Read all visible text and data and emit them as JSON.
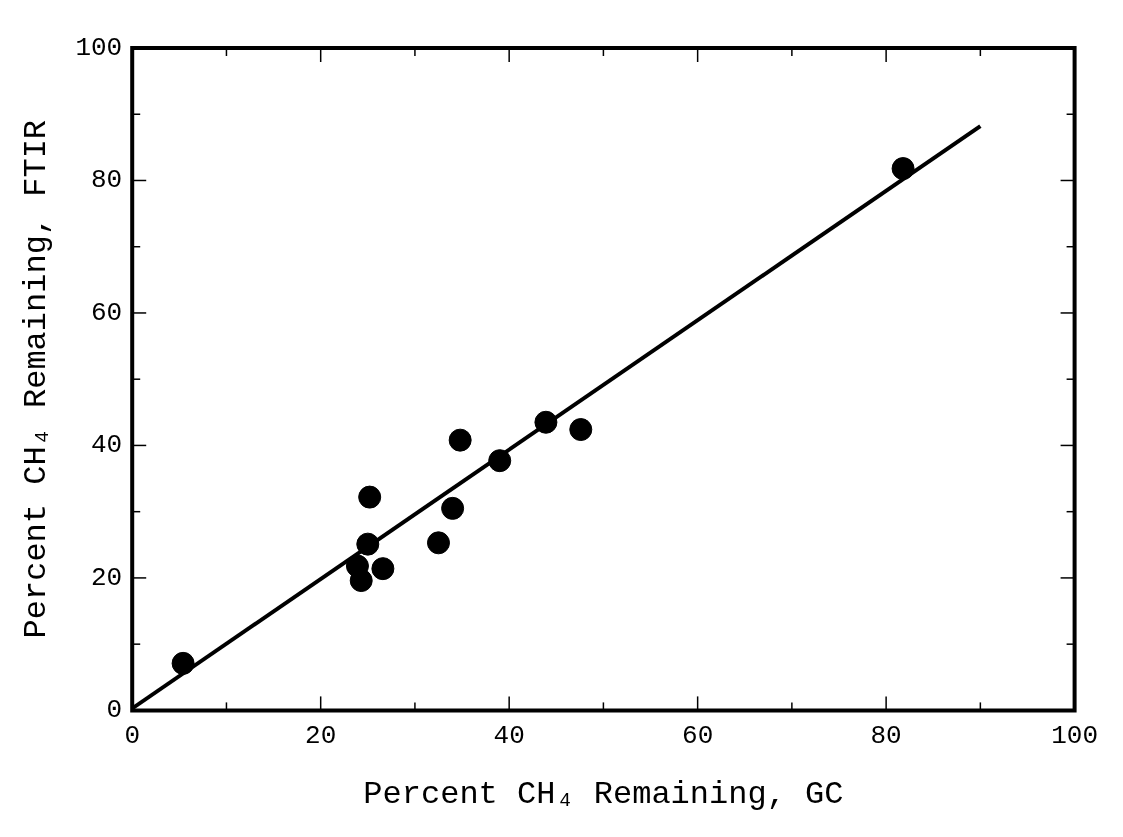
{
  "chart_data": {
    "type": "scatter",
    "xlabel": "Percent CH₄ Remaining, GC",
    "ylabel": "Percent CH₄ Remaining, FTIR",
    "xlim": [
      0,
      100
    ],
    "ylim": [
      0,
      100
    ],
    "xticks": [
      0,
      {
        "value": 10,
        "label": null
      },
      20,
      {
        "value": 30,
        "label": null
      },
      40,
      {
        "value": 50,
        "label": null
      },
      60,
      {
        "value": 70,
        "label": null
      },
      80,
      {
        "value": 90,
        "label": null
      },
      100
    ],
    "yticks": [
      0,
      {
        "value": 10,
        "label": null
      },
      20,
      {
        "value": 30,
        "label": null
      },
      40,
      {
        "value": 50,
        "label": null
      },
      60,
      {
        "value": 70,
        "label": null
      },
      80,
      {
        "value": 90,
        "label": null
      },
      100
    ],
    "grid": false,
    "marker": "circle",
    "series": [
      {
        "color": "#000000",
        "x": [
          5.4,
          25.2,
          25.0,
          24.3,
          23.9,
          26.6,
          32.5,
          34.0,
          34.8,
          39.0,
          43.9,
          47.6,
          81.8
        ],
        "values": [
          7.1,
          32.2,
          25.1,
          19.6,
          21.8,
          21.4,
          25.3,
          30.5,
          40.8,
          37.7,
          43.5,
          42.4,
          81.8
        ]
      },
      {
        "type": "line",
        "color": "#000000",
        "x": [
          0,
          90
        ],
        "values": [
          0.3,
          88.2
        ],
        "marker": "none",
        "line_style": "solid"
      }
    ]
  }
}
